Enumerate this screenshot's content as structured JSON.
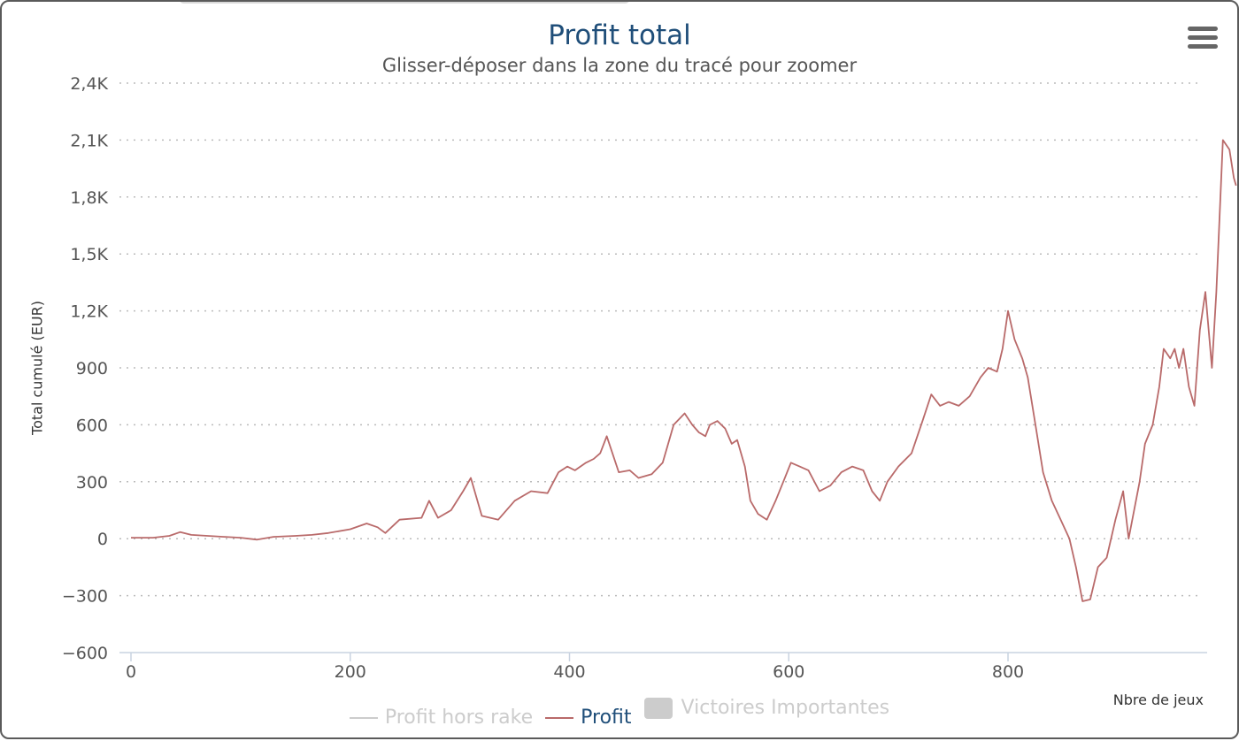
{
  "chart_data": {
    "type": "line",
    "title": "Profit total",
    "subtitle": "Glisser-déposer dans la zone du tracé pour zoomer",
    "xlabel": "Nbre de jeux",
    "ylabel": "Total cumulé (EUR)",
    "xlim": [
      0,
      980
    ],
    "ylim": [
      -600,
      2400
    ],
    "x_ticks": [
      {
        "value": 0,
        "label": "0"
      },
      {
        "value": 200,
        "label": "200"
      },
      {
        "value": 400,
        "label": "400"
      },
      {
        "value": 600,
        "label": "600"
      },
      {
        "value": 800,
        "label": "800"
      }
    ],
    "y_ticks": [
      {
        "value": 2400,
        "label": "2,4K"
      },
      {
        "value": 2100,
        "label": "2,1K"
      },
      {
        "value": 1800,
        "label": "1,8K"
      },
      {
        "value": 1500,
        "label": "1,5K"
      },
      {
        "value": 1200,
        "label": "1,2K"
      },
      {
        "value": 900,
        "label": "900"
      },
      {
        "value": 600,
        "label": "600"
      },
      {
        "value": 300,
        "label": "300"
      },
      {
        "value": 0,
        "label": "0"
      },
      {
        "value": -300,
        "label": "−300"
      },
      {
        "value": -600,
        "label": "−600"
      }
    ],
    "grid": true,
    "legend_position": "bottom",
    "series": [
      {
        "name": "Profit",
        "color": "#b96a6a",
        "points": [
          [
            0,
            5
          ],
          [
            20,
            5
          ],
          [
            35,
            15
          ],
          [
            45,
            35
          ],
          [
            55,
            20
          ],
          [
            70,
            15
          ],
          [
            85,
            10
          ],
          [
            100,
            5
          ],
          [
            115,
            -5
          ],
          [
            130,
            10
          ],
          [
            150,
            15
          ],
          [
            165,
            20
          ],
          [
            180,
            30
          ],
          [
            200,
            50
          ],
          [
            215,
            80
          ],
          [
            225,
            60
          ],
          [
            232,
            30
          ],
          [
            245,
            100
          ],
          [
            265,
            110
          ],
          [
            272,
            200
          ],
          [
            280,
            110
          ],
          [
            292,
            150
          ],
          [
            303,
            250
          ],
          [
            310,
            320
          ],
          [
            320,
            120
          ],
          [
            335,
            100
          ],
          [
            350,
            200
          ],
          [
            365,
            250
          ],
          [
            380,
            240
          ],
          [
            390,
            350
          ],
          [
            398,
            380
          ],
          [
            405,
            360
          ],
          [
            415,
            400
          ],
          [
            422,
            420
          ],
          [
            428,
            450
          ],
          [
            434,
            540
          ],
          [
            445,
            350
          ],
          [
            455,
            360
          ],
          [
            463,
            320
          ],
          [
            475,
            340
          ],
          [
            485,
            400
          ],
          [
            495,
            600
          ],
          [
            505,
            660
          ],
          [
            512,
            600
          ],
          [
            518,
            560
          ],
          [
            524,
            540
          ],
          [
            528,
            600
          ],
          [
            535,
            620
          ],
          [
            542,
            580
          ],
          [
            548,
            500
          ],
          [
            553,
            520
          ],
          [
            560,
            380
          ],
          [
            565,
            200
          ],
          [
            572,
            130
          ],
          [
            580,
            100
          ],
          [
            588,
            200
          ],
          [
            595,
            300
          ],
          [
            602,
            400
          ],
          [
            610,
            380
          ],
          [
            618,
            360
          ],
          [
            628,
            250
          ],
          [
            638,
            280
          ],
          [
            648,
            350
          ],
          [
            658,
            380
          ],
          [
            668,
            360
          ],
          [
            676,
            250
          ],
          [
            683,
            200
          ],
          [
            690,
            300
          ],
          [
            700,
            380
          ],
          [
            712,
            450
          ],
          [
            722,
            620
          ],
          [
            730,
            760
          ],
          [
            738,
            700
          ],
          [
            746,
            720
          ],
          [
            755,
            700
          ],
          [
            765,
            750
          ],
          [
            775,
            850
          ],
          [
            782,
            900
          ],
          [
            790,
            880
          ],
          [
            795,
            1000
          ],
          [
            800,
            1200
          ],
          [
            806,
            1050
          ],
          [
            813,
            950
          ],
          [
            818,
            850
          ],
          [
            825,
            600
          ],
          [
            832,
            350
          ],
          [
            840,
            200
          ],
          [
            848,
            100
          ],
          [
            856,
            0
          ],
          [
            862,
            -150
          ],
          [
            868,
            -330
          ],
          [
            875,
            -320
          ],
          [
            882,
            -150
          ],
          [
            890,
            -100
          ],
          [
            898,
            100
          ],
          [
            905,
            250
          ],
          [
            910,
            0
          ],
          [
            915,
            150
          ],
          [
            920,
            300
          ],
          [
            925,
            500
          ],
          [
            932,
            600
          ],
          [
            938,
            800
          ],
          [
            942,
            1000
          ],
          [
            948,
            950
          ],
          [
            952,
            1000
          ],
          [
            956,
            900
          ],
          [
            960,
            1000
          ],
          [
            965,
            800
          ],
          [
            970,
            700
          ],
          [
            975,
            1100
          ],
          [
            980,
            1300
          ],
          [
            986,
            900
          ],
          [
            990,
            1300
          ],
          [
            996,
            2100
          ],
          [
            1002,
            2050
          ],
          [
            1006,
            1900
          ],
          [
            1008,
            1860
          ]
        ]
      }
    ],
    "legend": [
      {
        "name": "Profit hors rake",
        "color": "#cccccc",
        "kind": "line",
        "active": false
      },
      {
        "name": "Profit",
        "color": "#b96a6a",
        "kind": "line",
        "active": true
      },
      {
        "name": "Victoires Importantes",
        "color": "#cccccc",
        "kind": "box",
        "active": false
      }
    ]
  },
  "menu": {
    "icon": "hamburger-menu-icon"
  }
}
